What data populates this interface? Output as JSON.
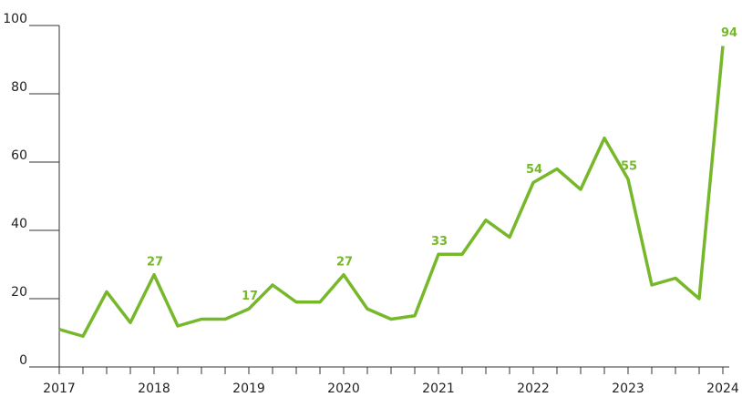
{
  "chart_data": {
    "type": "line",
    "categories": [
      "2017",
      null,
      null,
      null,
      "2018",
      null,
      null,
      null,
      "2019",
      null,
      null,
      null,
      "2020",
      null,
      null,
      null,
      "2021",
      null,
      null,
      null,
      "2022",
      null,
      null,
      null,
      "2023",
      null,
      null,
      null,
      "2024"
    ],
    "series": [
      {
        "color": "#76b82a",
        "values": [
          11,
          9,
          22,
          13,
          27,
          12,
          14,
          14,
          17,
          24,
          19,
          19,
          27,
          17,
          14,
          15,
          33,
          33,
          43,
          38,
          54,
          58,
          52,
          67,
          55,
          24,
          26,
          20,
          94
        ],
        "value_labels": [
          null,
          null,
          null,
          null,
          "27",
          null,
          null,
          null,
          "17",
          null,
          null,
          null,
          "27",
          null,
          null,
          null,
          "33",
          null,
          null,
          null,
          "54",
          null,
          null,
          null,
          "55",
          null,
          null,
          null,
          "94"
        ]
      }
    ],
    "ylim": [
      0,
      100
    ],
    "yticks": [
      0,
      20,
      40,
      60,
      80,
      100
    ]
  }
}
